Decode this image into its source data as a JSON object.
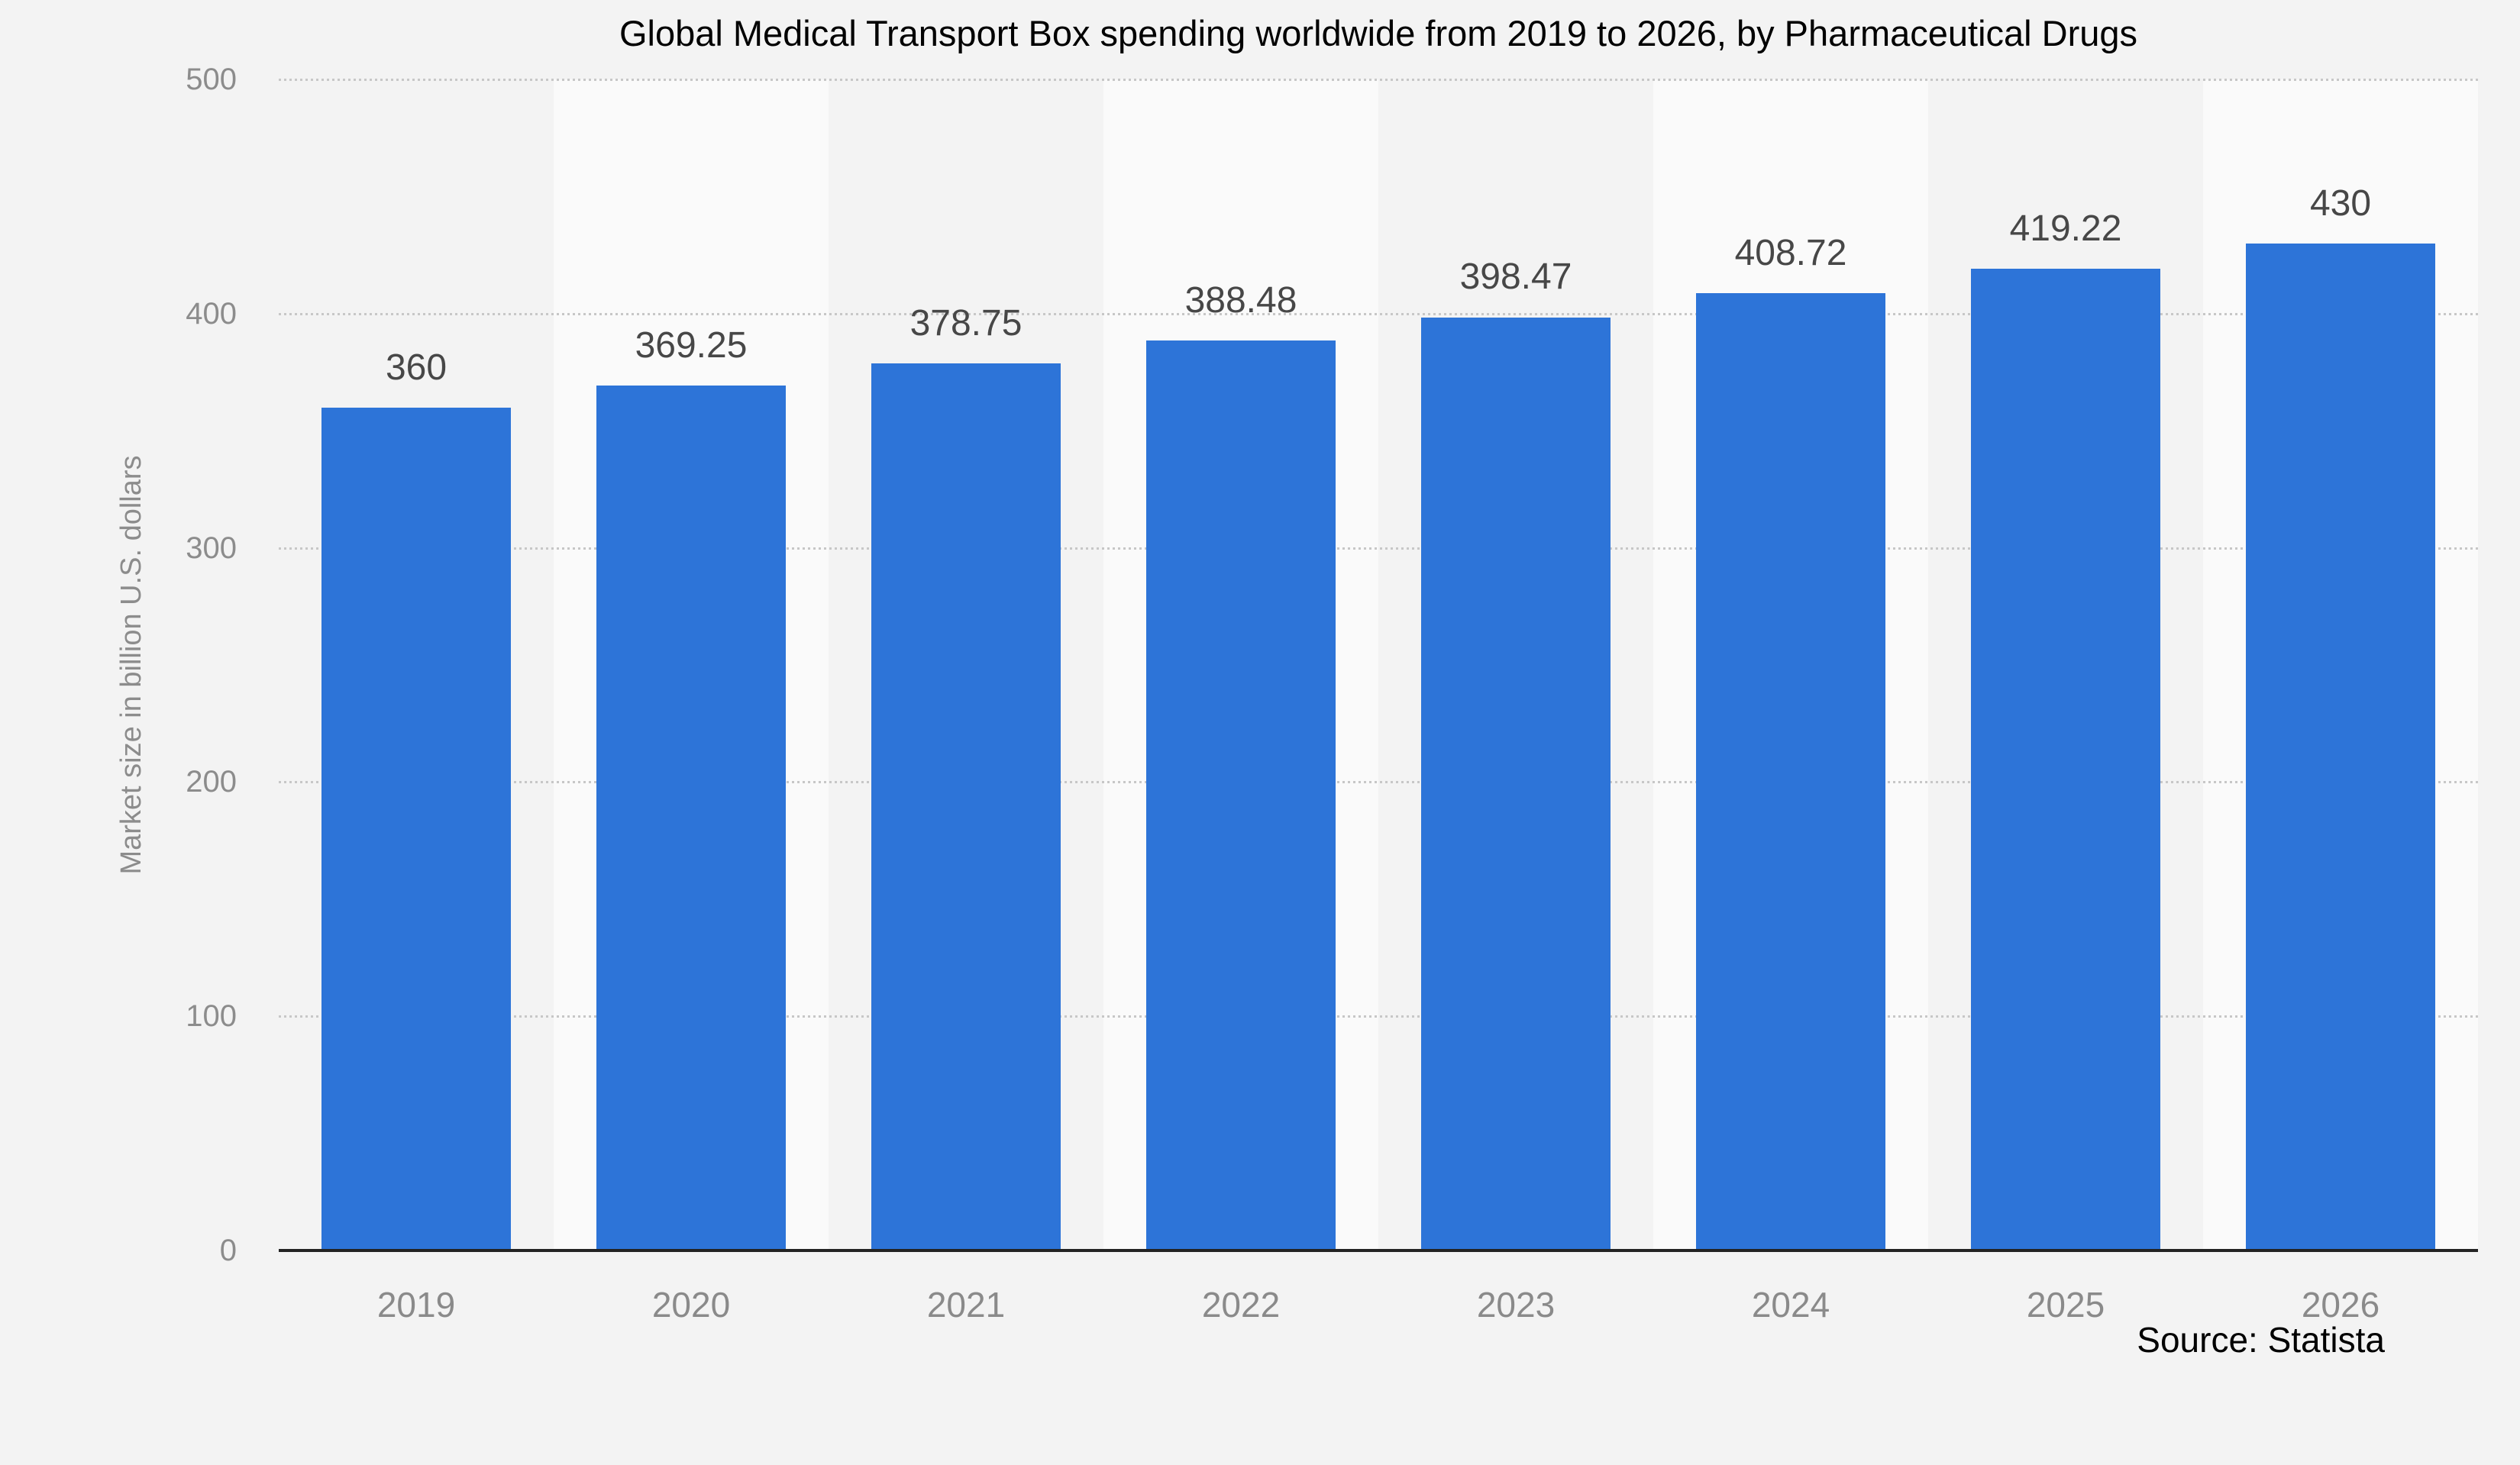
{
  "title": "Global Medical Transport Box  spending worldwide from 2019 to 2026, by Pharmaceutical Drugs",
  "source": "Source: Statista",
  "y_axis": {
    "label": "Market size in billion U.S. dollars",
    "ticks": [
      "500",
      "400",
      "300",
      "200",
      "100",
      "0"
    ]
  },
  "chart_data": {
    "type": "bar",
    "title": "Global Medical Transport Box  spending worldwide from 2019 to 2026, by Pharmaceutical Drugs",
    "categories": [
      "2019",
      "2020",
      "2021",
      "2022",
      "2023",
      "2024",
      "2025",
      "2026"
    ],
    "values": [
      360,
      369.25,
      378.75,
      388.48,
      398.47,
      408.72,
      419.22,
      430
    ],
    "value_labels": [
      "360",
      "369.25",
      "378.75",
      "388.48",
      "398.47",
      "408.72",
      "419.22",
      "430"
    ],
    "xlabel": "",
    "ylabel": "Market size in billion U.S. dollars",
    "ylim": [
      0,
      500
    ],
    "y_tick_step": 100,
    "grid": "dotted-horizontal",
    "legend": "none",
    "bar_color": "#2d74d8",
    "stripe_colors": [
      "#f3f3f3",
      "#fafafa"
    ],
    "gridline_color": "#c7c7c7",
    "axis_line_color": "#232323"
  }
}
